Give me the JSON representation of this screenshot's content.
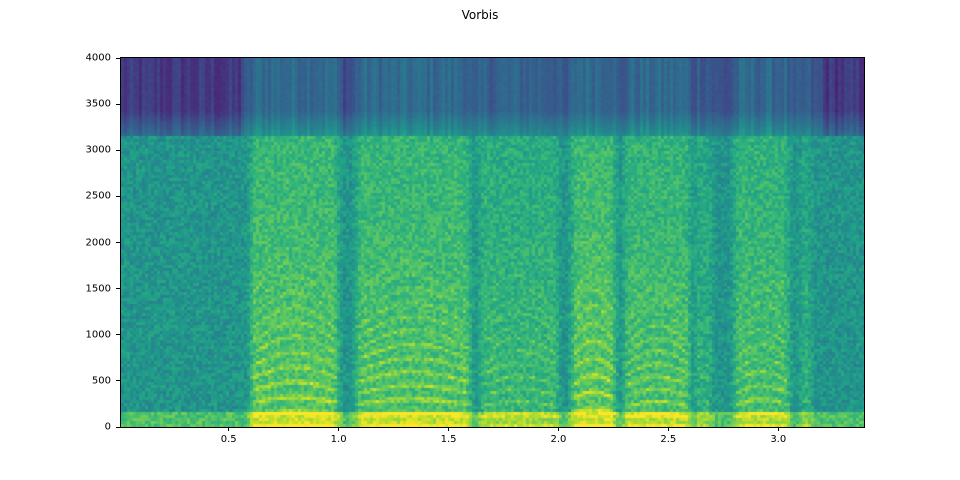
{
  "chart_data": {
    "type": "heatmap",
    "subtype": "spectrogram",
    "title": "Vorbis",
    "xlabel": "",
    "ylabel": "",
    "xlim": [
      0.01,
      3.39
    ],
    "ylim": [
      0,
      4000
    ],
    "xticks": [
      "0.5",
      "1.0",
      "1.5",
      "2.0",
      "2.5",
      "3.0"
    ],
    "xtick_values": [
      0.5,
      1.0,
      1.5,
      2.0,
      2.5,
      3.0
    ],
    "yticks": [
      "0",
      "500",
      "1000",
      "1500",
      "2000",
      "2500",
      "3000",
      "3500",
      "4000"
    ],
    "ytick_values": [
      0,
      500,
      1000,
      1500,
      2000,
      2500,
      3000,
      3500,
      4000
    ],
    "colormap": "viridis",
    "grid": false,
    "lowpass_cutoff_hz": 3150,
    "voiced_segments": [
      {
        "start": 0.6,
        "end": 1.0,
        "level": 0.9,
        "f0_hz": 130
      },
      {
        "start": 1.08,
        "end": 1.6,
        "level": 0.85,
        "f0_hz": 120
      },
      {
        "start": 1.64,
        "end": 2.0,
        "level": 0.6,
        "f0_hz": 110
      },
      {
        "start": 2.06,
        "end": 2.26,
        "level": 0.95,
        "f0_hz": 150
      },
      {
        "start": 2.3,
        "end": 2.6,
        "level": 0.8,
        "f0_hz": 110
      },
      {
        "start": 2.62,
        "end": 2.7,
        "level": 0.45,
        "f0_hz": 110
      },
      {
        "start": 2.8,
        "end": 3.05,
        "level": 0.75,
        "f0_hz": 120
      },
      {
        "start": 3.1,
        "end": 3.15,
        "level": 0.4,
        "f0_hz": 120
      }
    ]
  }
}
